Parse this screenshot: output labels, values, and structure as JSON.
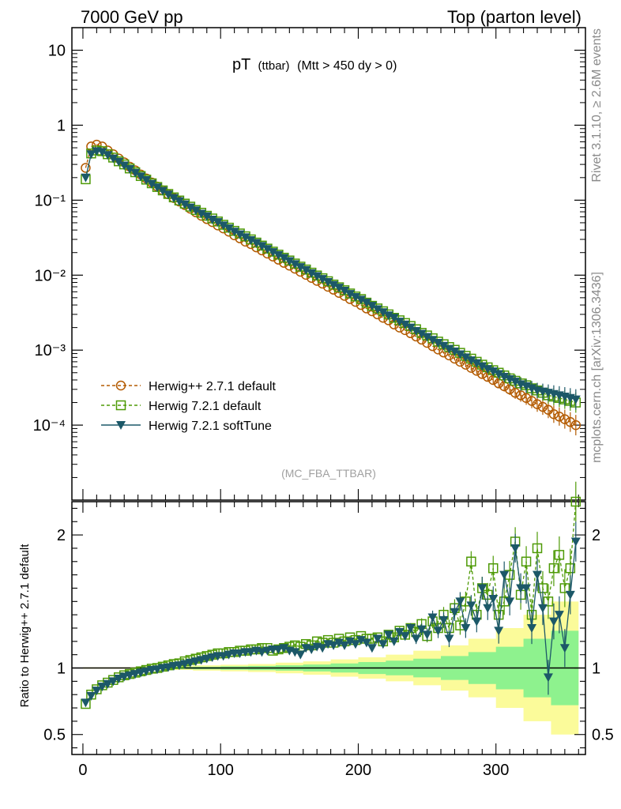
{
  "header": {
    "left": "7000 GeV pp",
    "right": "Top (parton level)"
  },
  "side_label_top": "Rivet 3.1.10, ≥ 2.6M events",
  "side_label_bottom": "mcplots.cern.ch [arXiv:1306.3436]",
  "main_title": {
    "main": "pT",
    "sub1": "(ttbar)",
    "sub2": "(Mtt > 450 dy > 0)"
  },
  "analysis_label": "(MC_FBA_TTBAR)",
  "ratio_ylabel": "Ratio to Herwig++ 2.7.1 default",
  "legend": [
    {
      "label": "Herwig++ 2.7.1 default",
      "color": "#b35a00",
      "marker": "circle",
      "dash": true
    },
    {
      "label": "Herwig 7.2.1 default",
      "color": "#4e9a06",
      "marker": "square",
      "dash": true
    },
    {
      "label": "Herwig 7.2.1 softTune",
      "color": "#1c5868",
      "marker": "triangle-down",
      "dash": false
    }
  ],
  "chart_data": [
    {
      "type": "scatter",
      "panel": "main",
      "yscale": "log",
      "ylim": [
        1e-05,
        20
      ],
      "xlim": [
        -8,
        365
      ],
      "y_tick_labels": [
        "10",
        "1",
        "10⁻¹",
        "10⁻²",
        "10⁻³",
        "10⁻⁴"
      ],
      "x": [
        2,
        6,
        10,
        14,
        18,
        22,
        26,
        30,
        34,
        38,
        42,
        46,
        50,
        54,
        58,
        62,
        66,
        70,
        74,
        78,
        82,
        86,
        90,
        94,
        98,
        102,
        106,
        110,
        114,
        118,
        122,
        126,
        130,
        134,
        138,
        142,
        146,
        150,
        154,
        158,
        162,
        166,
        170,
        174,
        178,
        182,
        186,
        190,
        194,
        198,
        202,
        206,
        210,
        214,
        218,
        222,
        226,
        230,
        234,
        238,
        242,
        246,
        250,
        254,
        258,
        262,
        266,
        270,
        274,
        278,
        282,
        286,
        290,
        294,
        298,
        302,
        306,
        310,
        314,
        318,
        322,
        326,
        330,
        334,
        338,
        342,
        346,
        350,
        354,
        358
      ],
      "series": [
        {
          "name": "Herwig++ 2.7.1 default",
          "values": [
            0.27,
            0.52,
            0.55,
            0.52,
            0.46,
            0.41,
            0.36,
            0.32,
            0.28,
            0.25,
            0.22,
            0.195,
            0.172,
            0.152,
            0.135,
            0.12,
            0.107,
            0.096,
            0.086,
            0.077,
            0.069,
            0.062,
            0.056,
            0.051,
            0.046,
            0.042,
            0.038,
            0.034,
            0.031,
            0.028,
            0.026,
            0.0235,
            0.0214,
            0.0194,
            0.0177,
            0.0161,
            0.0146,
            0.0134,
            0.0122,
            0.0111,
            0.0101,
            0.0092,
            0.0084,
            0.0077,
            0.007,
            0.0064,
            0.0058,
            0.0053,
            0.0048,
            0.0044,
            0.004,
            0.0036,
            0.0033,
            0.003,
            0.0027,
            0.0025,
            0.0022,
            0.002,
            0.00185,
            0.00168,
            0.00152,
            0.00138,
            0.00125,
            0.00113,
            0.00102,
            0.00093,
            0.00085,
            0.00077,
            0.0007,
            0.00064,
            0.00058,
            0.00053,
            0.00048,
            0.00044,
            0.0004,
            0.00036,
            0.00033,
            0.0003,
            0.00027,
            0.00025,
            0.00023,
            0.00021,
            0.00019,
            0.000175,
            0.00016,
            0.00014,
            0.00013,
            0.00012,
            0.00011,
            0.0001
          ]
        },
        {
          "name": "Herwig 7.2.1 default",
          "values": [
            0.19,
            0.42,
            0.46,
            0.45,
            0.41,
            0.37,
            0.33,
            0.3,
            0.265,
            0.236,
            0.21,
            0.188,
            0.168,
            0.15,
            0.135,
            0.121,
            0.109,
            0.099,
            0.09,
            0.082,
            0.074,
            0.068,
            0.062,
            0.057,
            0.052,
            0.047,
            0.043,
            0.039,
            0.036,
            0.033,
            0.03,
            0.0272,
            0.0248,
            0.0226,
            0.0206,
            0.0188,
            0.0171,
            0.0157,
            0.0143,
            0.013,
            0.0119,
            0.0108,
            0.0099,
            0.0091,
            0.0083,
            0.0075,
            0.0069,
            0.0063,
            0.0057,
            0.0052,
            0.0048,
            0.0043,
            0.0039,
            0.0036,
            0.0033,
            0.003,
            0.0027,
            0.0025,
            0.0023,
            0.0021,
            0.0019,
            0.0017,
            0.00157,
            0.00144,
            0.0013,
            0.0012,
            0.0011,
            0.00101,
            0.00092,
            0.00084,
            0.00077,
            0.0007,
            0.00064,
            0.00059,
            0.00054,
            0.0005,
            0.00046,
            0.00042,
            0.00039,
            0.00036,
            0.00034,
            0.00031,
            0.00029,
            0.00027,
            0.00025,
            0.00024,
            0.00023,
            0.00022,
            0.00021,
            0.0002
          ]
        },
        {
          "name": "Herwig 7.2.1 softTune",
          "values": [
            0.2,
            0.41,
            0.45,
            0.44,
            0.4,
            0.36,
            0.325,
            0.29,
            0.26,
            0.232,
            0.207,
            0.185,
            0.165,
            0.148,
            0.133,
            0.119,
            0.107,
            0.097,
            0.088,
            0.08,
            0.073,
            0.066,
            0.061,
            0.055,
            0.051,
            0.046,
            0.042,
            0.038,
            0.035,
            0.032,
            0.0293,
            0.0268,
            0.0245,
            0.0223,
            0.0203,
            0.0185,
            0.0169,
            0.0154,
            0.014,
            0.0128,
            0.0117,
            0.0106,
            0.0097,
            0.0089,
            0.0081,
            0.0074,
            0.0068,
            0.0062,
            0.0056,
            0.0051,
            0.0047,
            0.0043,
            0.0039,
            0.0035,
            0.0032,
            0.0029,
            0.0027,
            0.0024,
            0.0022,
            0.002,
            0.0018,
            0.00165,
            0.0015,
            0.00137,
            0.00125,
            0.00114,
            0.00104,
            0.00096,
            0.00088,
            0.0008,
            0.00073,
            0.00067,
            0.00061,
            0.00056,
            0.00052,
            0.00048,
            0.00044,
            0.00041,
            0.00038,
            0.00035,
            0.00033,
            0.00031,
            0.00029,
            0.00028,
            0.00027,
            0.00026,
            0.00025,
            0.00024,
            0.00023,
            0.00022
          ]
        }
      ]
    },
    {
      "type": "scatter",
      "panel": "ratio",
      "ylabel": "Ratio to Herwig++ 2.7.1 default",
      "ylim": [
        0.35,
        2.25
      ],
      "xlim": [
        -8,
        365
      ],
      "x_ticks": [
        0,
        100,
        200,
        300
      ],
      "y_ticks": [
        0.5,
        1,
        2
      ],
      "band_x": [
        0,
        20,
        40,
        60,
        80,
        100,
        120,
        140,
        160,
        180,
        200,
        220,
        240,
        260,
        280,
        300,
        320,
        340,
        360
      ],
      "band_yellow_halfwidth": [
        0.005,
        0.005,
        0.01,
        0.015,
        0.02,
        0.025,
        0.03,
        0.04,
        0.05,
        0.065,
        0.08,
        0.1,
        0.13,
        0.17,
        0.22,
        0.3,
        0.4,
        0.5,
        0.55
      ],
      "band_green_halfwidth": [
        0.003,
        0.003,
        0.005,
        0.008,
        0.01,
        0.013,
        0.016,
        0.02,
        0.026,
        0.034,
        0.045,
        0.055,
        0.07,
        0.09,
        0.12,
        0.16,
        0.22,
        0.28,
        0.32
      ],
      "x": [
        2,
        6,
        10,
        14,
        18,
        22,
        26,
        30,
        34,
        38,
        42,
        46,
        50,
        54,
        58,
        62,
        66,
        70,
        74,
        78,
        82,
        86,
        90,
        94,
        98,
        102,
        106,
        110,
        114,
        118,
        122,
        126,
        130,
        134,
        138,
        142,
        146,
        150,
        154,
        158,
        162,
        166,
        170,
        174,
        178,
        182,
        186,
        190,
        194,
        198,
        202,
        206,
        210,
        214,
        218,
        222,
        226,
        230,
        234,
        238,
        242,
        246,
        250,
        254,
        258,
        262,
        266,
        270,
        274,
        278,
        282,
        286,
        290,
        294,
        298,
        302,
        306,
        310,
        314,
        318,
        322,
        326,
        330,
        334,
        338,
        342,
        346,
        350,
        354,
        358
      ],
      "series": [
        {
          "name": "Herwig 7.2.1 default",
          "values": [
            0.73,
            0.8,
            0.84,
            0.87,
            0.89,
            0.91,
            0.93,
            0.945,
            0.955,
            0.965,
            0.975,
            0.985,
            0.995,
            1.0,
            1.01,
            1.02,
            1.03,
            1.035,
            1.05,
            1.06,
            1.07,
            1.08,
            1.09,
            1.1,
            1.11,
            1.11,
            1.12,
            1.12,
            1.13,
            1.13,
            1.14,
            1.14,
            1.15,
            1.15,
            1.13,
            1.14,
            1.15,
            1.16,
            1.17,
            1.16,
            1.18,
            1.17,
            1.2,
            1.19,
            1.21,
            1.19,
            1.22,
            1.2,
            1.23,
            1.21,
            1.24,
            1.22,
            1.22,
            1.23,
            1.2,
            1.25,
            1.23,
            1.28,
            1.25,
            1.3,
            1.27,
            1.33,
            1.24,
            1.35,
            1.3,
            1.4,
            1.3,
            1.45,
            1.32,
            1.5,
            1.8,
            1.4,
            1.6,
            1.55,
            1.75,
            1.4,
            1.5,
            1.7,
            1.95,
            1.55,
            1.8,
            1.4,
            1.9,
            1.6,
            1.5,
            1.75,
            1.85,
            1.6,
            1.75,
            2.25
          ]
        },
        {
          "name": "Herwig 7.2.1 softTune",
          "values": [
            0.74,
            0.79,
            0.83,
            0.86,
            0.88,
            0.9,
            0.92,
            0.935,
            0.945,
            0.955,
            0.965,
            0.975,
            0.985,
            0.99,
            1.0,
            1.005,
            1.015,
            1.02,
            1.03,
            1.04,
            1.05,
            1.06,
            1.07,
            1.08,
            1.09,
            1.09,
            1.1,
            1.11,
            1.11,
            1.12,
            1.12,
            1.13,
            1.12,
            1.13,
            1.14,
            1.14,
            1.15,
            1.13,
            1.12,
            1.1,
            1.15,
            1.14,
            1.16,
            1.15,
            1.18,
            1.17,
            1.19,
            1.17,
            1.2,
            1.18,
            1.21,
            1.19,
            1.15,
            1.22,
            1.18,
            1.25,
            1.2,
            1.27,
            1.24,
            1.3,
            1.22,
            1.29,
            1.25,
            1.38,
            1.28,
            1.36,
            1.22,
            1.42,
            1.5,
            1.3,
            1.47,
            1.35,
            1.6,
            1.45,
            1.52,
            1.28,
            1.7,
            1.5,
            1.9,
            1.6,
            1.6,
            1.3,
            1.7,
            1.45,
            0.93,
            1.35,
            1.4,
            1.15,
            1.55,
            1.95
          ]
        },
        {
          "name": "Herwig++ 2.7.1 default",
          "values": [
            1,
            1,
            1,
            1,
            1,
            1,
            1,
            1,
            1,
            1,
            1,
            1,
            1,
            1,
            1,
            1,
            1,
            1,
            1,
            1,
            1,
            1,
            1,
            1,
            1,
            1,
            1,
            1,
            1,
            1,
            1,
            1,
            1,
            1,
            1,
            1,
            1,
            1,
            1,
            1,
            1,
            1,
            1,
            1,
            1,
            1,
            1,
            1,
            1,
            1,
            1,
            1,
            1,
            1,
            1,
            1,
            1,
            1,
            1,
            1,
            1,
            1,
            1,
            1,
            1,
            1,
            1,
            1,
            1,
            1,
            1,
            1,
            1,
            1,
            1,
            1,
            1,
            1,
            1,
            1,
            1,
            1,
            1,
            1,
            1,
            1,
            1,
            1,
            1,
            1
          ]
        }
      ]
    }
  ]
}
